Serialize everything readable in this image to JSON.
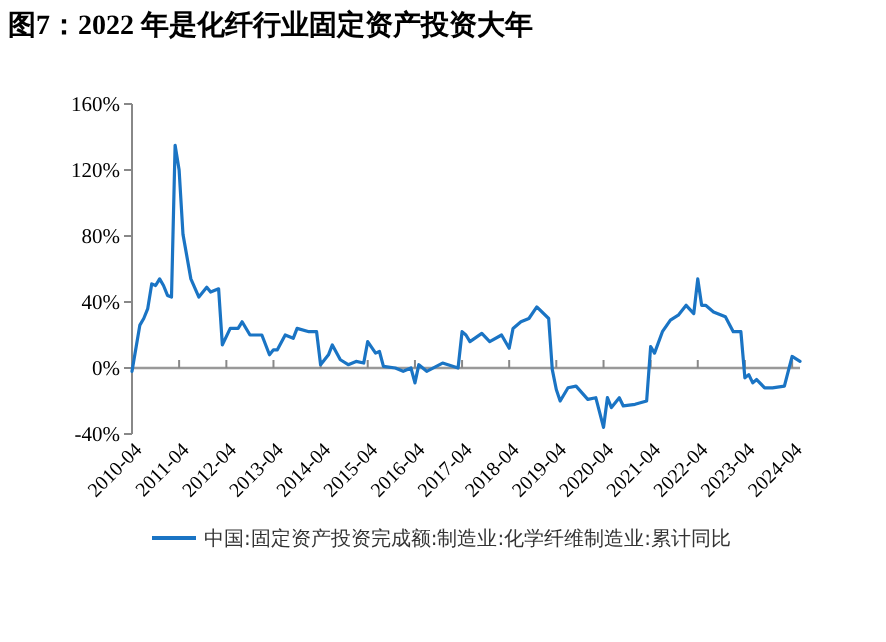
{
  "chart_data": {
    "type": "line",
    "title": "图7：2022 年是化纤行业固定资产投资大年",
    "series": [
      {
        "name": "中国:固定资产投资完成额:制造业:化学纤维制造业:累计同比",
        "color": "#1a74c4",
        "x": [
          "2010-04",
          "2010-06",
          "2010-07",
          "2010-08",
          "2010-09",
          "2010-10",
          "2010-11",
          "2010-12",
          "2011-01",
          "2011-02",
          "2011-03",
          "2011-04",
          "2011-05",
          "2011-07",
          "2011-09",
          "2011-11",
          "2011-12",
          "2012-02",
          "2012-03",
          "2012-05",
          "2012-07",
          "2012-08",
          "2012-10",
          "2013-01",
          "2013-03",
          "2013-04",
          "2013-05",
          "2013-07",
          "2013-09",
          "2013-10",
          "2014-01",
          "2014-03",
          "2014-04",
          "2014-06",
          "2014-07",
          "2014-09",
          "2014-11",
          "2015-01",
          "2015-03",
          "2015-04",
          "2015-06",
          "2015-07",
          "2015-08",
          "2015-11",
          "2016-01",
          "2016-03",
          "2016-04",
          "2016-05",
          "2016-07",
          "2016-11",
          "2017-03",
          "2017-04",
          "2017-05",
          "2017-06",
          "2017-09",
          "2017-11",
          "2018-02",
          "2018-04",
          "2018-05",
          "2018-07",
          "2018-09",
          "2018-11",
          "2019-02",
          "2019-03",
          "2019-04",
          "2019-05",
          "2019-07",
          "2019-09",
          "2019-12",
          "2020-02",
          "2020-04",
          "2020-05",
          "2020-06",
          "2020-08",
          "2020-09",
          "2020-12",
          "2021-03",
          "2021-04",
          "2021-05",
          "2021-07",
          "2021-09",
          "2021-11",
          "2022-01",
          "2022-03",
          "2022-04",
          "2022-05",
          "2022-06",
          "2022-08",
          "2022-11",
          "2023-01",
          "2023-03",
          "2023-04",
          "2023-05",
          "2023-06",
          "2023-07",
          "2023-09",
          "2023-11",
          "2024-02",
          "2024-04",
          "2024-06"
        ],
        "values": [
          -2,
          26,
          30,
          36,
          51,
          50,
          54,
          50,
          44,
          43,
          135,
          120,
          81,
          54,
          43,
          49,
          46,
          48,
          14,
          24,
          24,
          28,
          20,
          20,
          8,
          11,
          11,
          20,
          18,
          24,
          22,
          22,
          2,
          8,
          14,
          5,
          2,
          4,
          3,
          16,
          9,
          10,
          1,
          0,
          -2,
          0,
          -9,
          2,
          -2,
          3,
          0,
          22,
          20,
          16,
          21,
          16,
          20,
          12,
          24,
          28,
          30,
          37,
          30,
          -1,
          -13,
          -20,
          -12,
          -11,
          -19,
          -18,
          -36,
          -18,
          -24,
          -18,
          -23,
          -22,
          -20,
          13,
          9,
          22,
          29,
          32,
          38,
          33,
          54,
          38,
          38,
          34,
          31,
          22,
          22,
          -6,
          -4,
          -9,
          -7,
          -12,
          -12,
          -11,
          7,
          4
        ]
      }
    ],
    "xlim": [
      "2010-04",
      "2024-06"
    ],
    "xticks": [
      "2010-04",
      "2011-04",
      "2012-04",
      "2013-04",
      "2014-04",
      "2015-04",
      "2016-04",
      "2017-04",
      "2018-04",
      "2019-04",
      "2020-04",
      "2021-04",
      "2022-04",
      "2023-04",
      "2024-04"
    ],
    "ylim": [
      -40,
      160
    ],
    "yticks": [
      {
        "value": -40,
        "label": "-40%"
      },
      {
        "value": 0,
        "label": "0%"
      },
      {
        "value": 40,
        "label": "40%"
      },
      {
        "value": 80,
        "label": "80%"
      },
      {
        "value": 120,
        "label": "120%"
      },
      {
        "value": 160,
        "label": "160%"
      }
    ],
    "legend": "bottom",
    "line_style": "solid",
    "marker": "none"
  }
}
